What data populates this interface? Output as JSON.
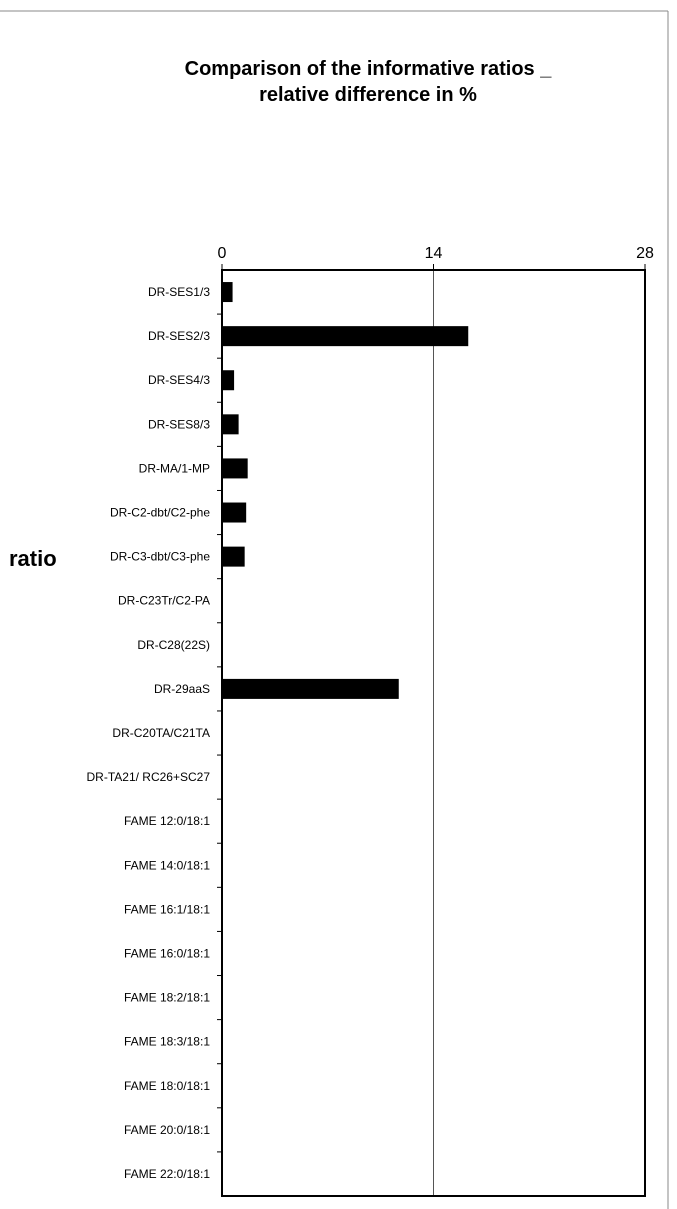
{
  "chart_data": {
    "type": "bar",
    "orientation": "horizontal",
    "title": [
      "Comparison of the informative ratios _",
      "relative difference in %"
    ],
    "xlabel": "",
    "ylabel": "ratio",
    "xlim": [
      0,
      28
    ],
    "xticks": [
      "0",
      "14",
      "28"
    ],
    "grid": "vertical-major",
    "categories": [
      "DR-SES1/3",
      "DR-SES2/3",
      "DR-SES4/3",
      "DR-SES8/3",
      "DR-MA/1-MP",
      "DR-C2-dbt/C2-phe",
      "DR-C3-dbt/C3-phe",
      "DR-C23Tr/C2-PA",
      "DR-C28(22S)",
      "DR-29aaS",
      "DR-C20TA/C21TA",
      "DR-TA21/ RC26+SC27",
      "FAME 12:0/18:1",
      "FAME 14:0/18:1",
      "FAME 16:1/18:1",
      "FAME 16:0/18:1",
      "FAME 18:2/18:1",
      "FAME 18:3/18:1",
      "FAME 18:0/18:1",
      "FAME 20:0/18:1",
      "FAME 22:0/18:1"
    ],
    "values": [
      0.7,
      16.3,
      0.8,
      1.1,
      1.7,
      1.6,
      1.5,
      0,
      0,
      11.7,
      0,
      0,
      0,
      0,
      0,
      0,
      0,
      0,
      0,
      0,
      0
    ],
    "bar_color": "#000000"
  }
}
